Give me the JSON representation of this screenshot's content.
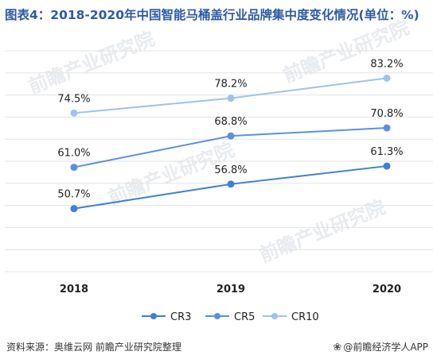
{
  "title": "图表4：2018-2020年中国智能马桶盖行业品牌集中度变化情况(单位：%)",
  "footer": {
    "source": "资料来源：奥维云网 前瞻产业研究院整理",
    "brand_icon": "paw-icon",
    "brand": "@前瞻经济学人APP"
  },
  "chart_data": {
    "type": "line",
    "title": "图表4：2018-2020年中国智能马桶盖行业品牌集中度变化情况(单位：%)",
    "categories": [
      "2018",
      "2019",
      "2020"
    ],
    "series": [
      {
        "name": "CR3",
        "values": [
          50.7,
          56.8,
          61.3
        ],
        "labels": [
          "50.7%",
          "56.8%",
          "61.3%"
        ],
        "color": "#3f7fd6"
      },
      {
        "name": "CR5",
        "values": [
          61.0,
          68.8,
          70.8
        ],
        "labels": [
          "61.0%",
          "68.8%",
          "70.8%"
        ],
        "color": "#5d8fe0"
      },
      {
        "name": "CR10",
        "values": [
          74.5,
          78.2,
          83.2
        ],
        "labels": [
          "74.5%",
          "78.2%",
          "83.2%"
        ],
        "color": "#9fc2f0"
      }
    ],
    "ylim": [
      35,
      90
    ],
    "grid": true,
    "legend": "bottom",
    "watermark": "前瞻产业研究院"
  }
}
